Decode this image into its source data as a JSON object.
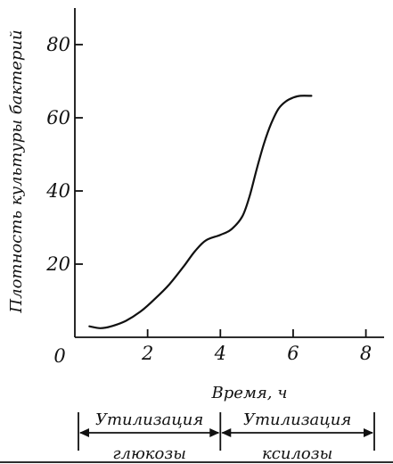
{
  "chart_data": {
    "type": "line",
    "title": "",
    "xlabel": "Время, ч",
    "ylabel": "Плотность культуры бактерий",
    "origin_label": "0",
    "xlim": [
      0,
      8.5
    ],
    "ylim": [
      0,
      90
    ],
    "x_ticks": [
      2,
      4,
      6,
      8
    ],
    "y_ticks": [
      20,
      40,
      60,
      80
    ],
    "x_tick_labels": [
      "2",
      "4",
      "6",
      "8"
    ],
    "y_tick_labels": [
      "20",
      "40",
      "60",
      "80"
    ],
    "grid": false,
    "series": [
      {
        "x": [
          0.4,
          0.7,
          1.0,
          1.4,
          1.8,
          2.2,
          2.6,
          3.0,
          3.3,
          3.6,
          4.0,
          4.3,
          4.6,
          4.8,
          5.0,
          5.2,
          5.4,
          5.6,
          5.8,
          6.0,
          6.2,
          6.5
        ],
        "values": [
          3,
          2.5,
          3,
          4.5,
          7,
          10.5,
          14.5,
          19.5,
          23.5,
          26.5,
          28,
          29.5,
          33,
          38.5,
          46,
          53,
          58.5,
          62.5,
          64.5,
          65.5,
          66,
          66
        ]
      }
    ],
    "phases": [
      {
        "label_top": "Утилизация",
        "label_bottom": "глюкозы",
        "x_start": 0,
        "x_end": 4
      },
      {
        "label_top": "Утилизация",
        "label_bottom": "ксилозы",
        "x_start": 4,
        "x_end": 8.5
      }
    ]
  }
}
